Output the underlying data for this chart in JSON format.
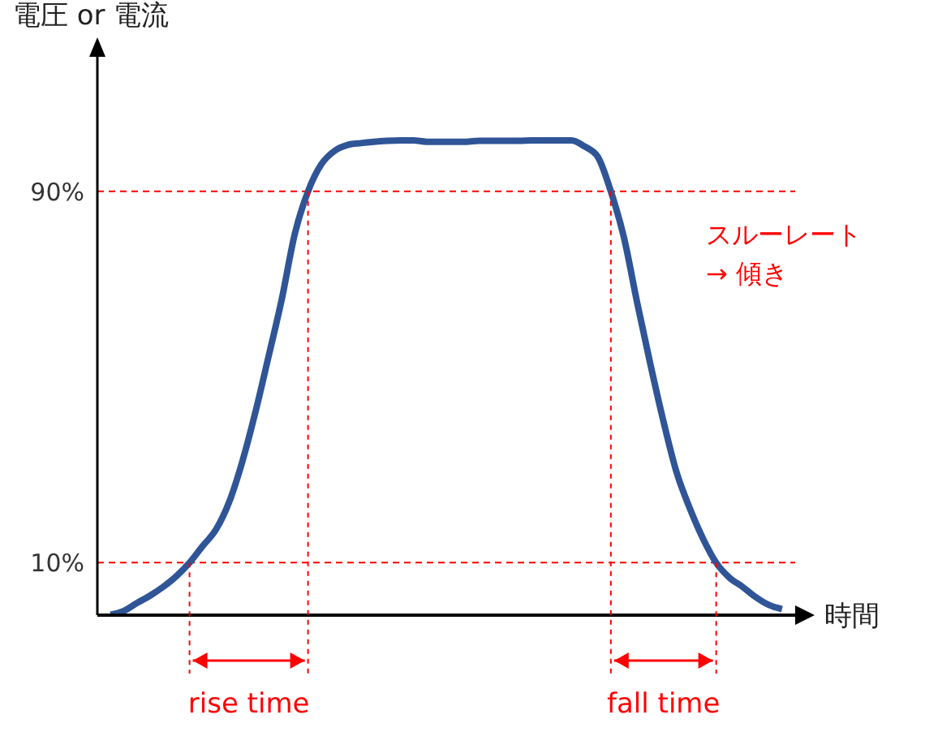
{
  "chart_data": {
    "type": "line",
    "categories": [
      null,
      null,
      null,
      null,
      null,
      null,
      null,
      null,
      null,
      null,
      null,
      null,
      null,
      null,
      null,
      null,
      null,
      null,
      null,
      null,
      null,
      null,
      null,
      null,
      null,
      null,
      null,
      null,
      null,
      null,
      null,
      null,
      null,
      null,
      null,
      null,
      null,
      null,
      null,
      null,
      null,
      null,
      null,
      null,
      null,
      null,
      null,
      null,
      null,
      null,
      null,
      null
    ],
    "series": [
      {
        "color": "#2f5597",
        "values": [
          -1.2,
          -0.4,
          1.3,
          2.9,
          4.8,
          7.1,
          10,
          13.6,
          17.1,
          23.0,
          31.7,
          42.4,
          54.4,
          66.7,
          80.9,
          90,
          95.8,
          98.7,
          100.0,
          100.4,
          100.7,
          100.9,
          101.0,
          101.0,
          100.7,
          100.7,
          100.7,
          100.7,
          100.9,
          100.9,
          100.9,
          100.9,
          101.0,
          101.0,
          101.0,
          101.0,
          99.7,
          97.5,
          90,
          80,
          66,
          52.8,
          40.4,
          29.4,
          21.7,
          15.2,
          10,
          6.8,
          4.8,
          2.6,
          0.9,
          0.0
        ]
      }
    ],
    "ylabel": "電圧 or 電流",
    "xlabel": "時間",
    "ylim": [
      -1.3,
      119
    ],
    "yticks": [
      {
        "value": 10,
        "label": "10%"
      },
      {
        "value": 90,
        "label": "90%"
      }
    ],
    "ref_lines": [
      {
        "axis": "y",
        "value": 10,
        "color": "#ff0000",
        "line_style": "dashed"
      },
      {
        "axis": "y",
        "value": 90,
        "color": "#ff0000",
        "line_style": "dashed"
      }
    ],
    "annotations": [
      "rise time",
      "fall time",
      "スルーレート\n→ 傾き"
    ],
    "line_style": "solid"
  }
}
